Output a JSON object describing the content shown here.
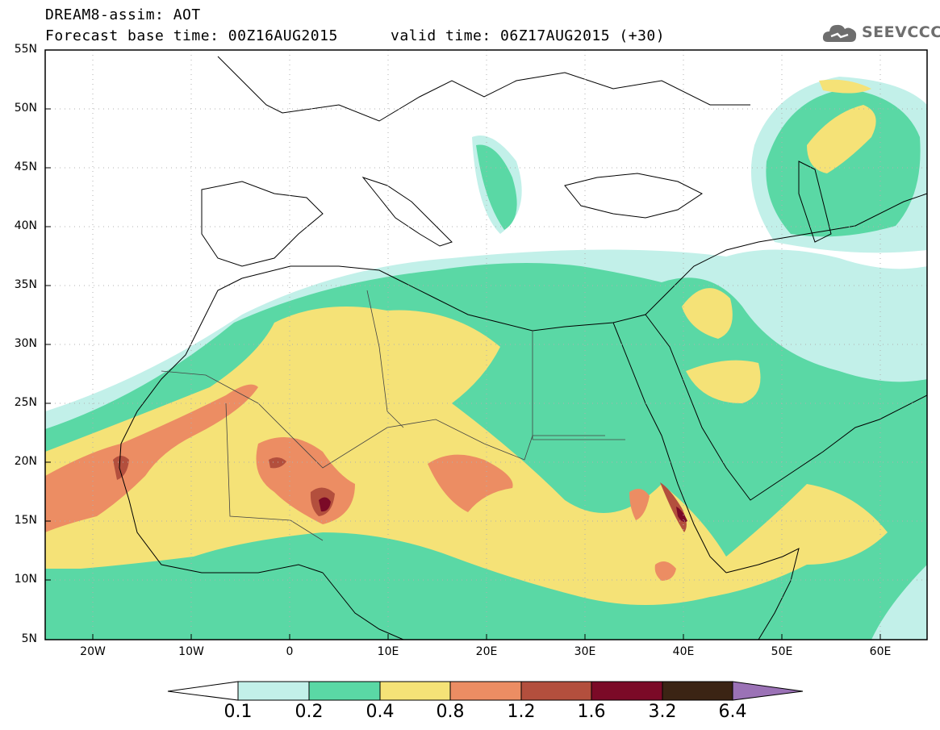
{
  "header": {
    "title": "DREAM8-assim: AOT",
    "base_time": "Forecast base time: 00Z16AUG2015",
    "valid_time": "valid time: 06Z17AUG2015 (+30)"
  },
  "logo": {
    "text": "SEEVCCC",
    "icon": "cloud-icon"
  },
  "map": {
    "lat_labels": [
      "55N",
      "50N",
      "45N",
      "40N",
      "35N",
      "30N",
      "25N",
      "20N",
      "15N",
      "10N",
      "5N"
    ],
    "lon_labels": [
      "20W",
      "10W",
      "0",
      "10E",
      "20E",
      "30E",
      "40E",
      "50E",
      "60E"
    ]
  },
  "colorbar": {
    "labels": [
      "0.1",
      "0.2",
      "0.4",
      "0.8",
      "1.2",
      "1.6",
      "3.2",
      "6.4"
    ],
    "colors": [
      "#c2f0e9",
      "#5ad8a5",
      "#f5e277",
      "#ec8d63",
      "#b34f3d",
      "#7b0a27",
      "#3b2414",
      "#9b72b6"
    ],
    "under_color": "#ffffff"
  }
}
